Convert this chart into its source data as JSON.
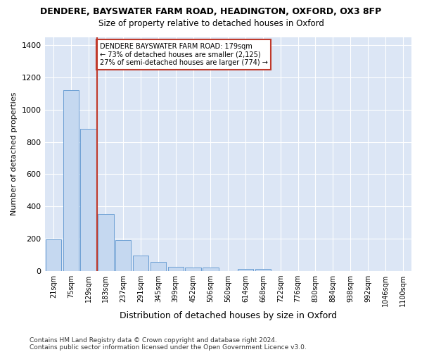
{
  "title": "DENDERE, BAYSWATER FARM ROAD, HEADINGTON, OXFORD, OX3 8FP",
  "subtitle": "Size of property relative to detached houses in Oxford",
  "xlabel": "Distribution of detached houses by size in Oxford",
  "ylabel": "Number of detached properties",
  "categories": [
    "21sqm",
    "75sqm",
    "129sqm",
    "183sqm",
    "237sqm",
    "291sqm",
    "345sqm",
    "399sqm",
    "452sqm",
    "506sqm",
    "560sqm",
    "614sqm",
    "668sqm",
    "722sqm",
    "776sqm",
    "830sqm",
    "884sqm",
    "938sqm",
    "992sqm",
    "1046sqm",
    "1100sqm"
  ],
  "values": [
    197,
    1120,
    880,
    355,
    193,
    97,
    55,
    25,
    20,
    20,
    0,
    15,
    15,
    0,
    0,
    0,
    0,
    0,
    0,
    0,
    0
  ],
  "bar_color": "#c5d8f0",
  "bar_edge_color": "#6b9fd4",
  "vline_color": "#c0392b",
  "vline_position": 2.5,
  "annotation_text": "DENDERE BAYSWATER FARM ROAD: 179sqm\n← 73% of detached houses are smaller (2,125)\n27% of semi-detached houses are larger (774) →",
  "annotation_box_color": "#c0392b",
  "ylim": [
    0,
    1450
  ],
  "yticks": [
    0,
    200,
    400,
    600,
    800,
    1000,
    1200,
    1400
  ],
  "footer1": "Contains HM Land Registry data © Crown copyright and database right 2024.",
  "footer2": "Contains public sector information licensed under the Open Government Licence v3.0.",
  "fig_bg_color": "#ffffff",
  "plot_bg_color": "#dce6f5"
}
